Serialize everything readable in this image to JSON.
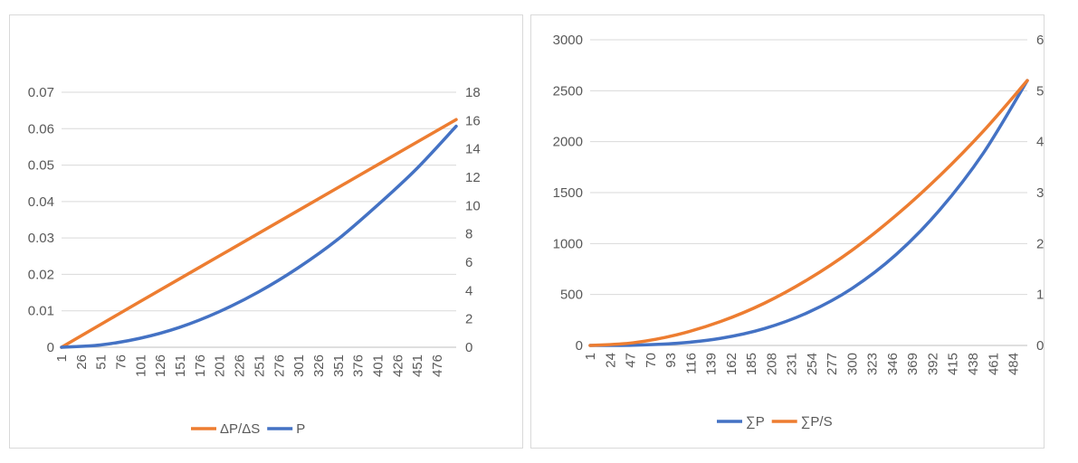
{
  "colors": {
    "orange": "#ed7d31",
    "blue": "#4472c4",
    "grid": "#d9d9d9",
    "text": "#595959"
  },
  "chart_data": [
    {
      "type": "line",
      "title": "",
      "xlabel": "",
      "ylabel": "",
      "grid": true,
      "legend_position": "bottom",
      "x_tick_labels": [
        "1",
        "26",
        "51",
        "76",
        "101",
        "126",
        "151",
        "176",
        "201",
        "226",
        "251",
        "276",
        "301",
        "326",
        "351",
        "376",
        "401",
        "426",
        "451",
        "476"
      ],
      "x_range": [
        1,
        500
      ],
      "y_left": {
        "ticks": [
          "0",
          "0.01",
          "0.02",
          "0.03",
          "0.04",
          "0.05",
          "0.06",
          "0.07"
        ],
        "range": [
          0,
          0.07
        ]
      },
      "y_right": {
        "ticks": [
          "0",
          "2",
          "4",
          "6",
          "8",
          "10",
          "12",
          "14",
          "16",
          "18"
        ],
        "range": [
          0,
          18
        ]
      },
      "series": [
        {
          "name": "ΔP/ΔS",
          "axis": "left",
          "color": "#ed7d31",
          "x": [
            1,
            100,
            200,
            300,
            400,
            500
          ],
          "y": [
            0,
            0.0125,
            0.025,
            0.0375,
            0.05,
            0.0625
          ]
        },
        {
          "name": "P",
          "axis": "right",
          "color": "#4472c4",
          "x": [
            1,
            50,
            100,
            150,
            200,
            250,
            300,
            350,
            400,
            450,
            500
          ],
          "y": [
            0,
            0.16,
            0.63,
            1.4,
            2.5,
            3.9,
            5.6,
            7.6,
            10.0,
            12.6,
            15.6
          ]
        }
      ]
    },
    {
      "type": "line",
      "title": "",
      "xlabel": "",
      "ylabel": "",
      "grid": true,
      "legend_position": "bottom",
      "x_tick_labels": [
        "1",
        "24",
        "47",
        "70",
        "93",
        "116",
        "139",
        "162",
        "185",
        "208",
        "231",
        "254",
        "277",
        "300",
        "323",
        "346",
        "369",
        "392",
        "415",
        "438",
        "461",
        "484"
      ],
      "x_range": [
        1,
        500
      ],
      "y_left": {
        "ticks": [
          "0",
          "500",
          "1000",
          "1500",
          "2000",
          "2500",
          "3000"
        ],
        "range": [
          0,
          3000
        ]
      },
      "y_right": {
        "ticks": [
          "0",
          "1",
          "2",
          "3",
          "4",
          "5",
          "6"
        ],
        "range": [
          0,
          6
        ]
      },
      "series": [
        {
          "name": "∑P",
          "axis": "left",
          "color": "#4472c4",
          "x": [
            1,
            50,
            100,
            150,
            200,
            250,
            300,
            350,
            400,
            450,
            500
          ],
          "y": [
            0,
            2.6,
            20.8,
            70,
            166,
            325,
            560,
            890,
            1330,
            1890,
            2600
          ]
        },
        {
          "name": "∑P/S",
          "axis": "right",
          "color": "#ed7d31",
          "x": [
            1,
            50,
            100,
            150,
            200,
            250,
            300,
            350,
            400,
            450,
            500
          ],
          "y": [
            0,
            0.052,
            0.21,
            0.47,
            0.83,
            1.3,
            1.87,
            2.55,
            3.33,
            4.21,
            5.2
          ]
        }
      ]
    }
  ]
}
